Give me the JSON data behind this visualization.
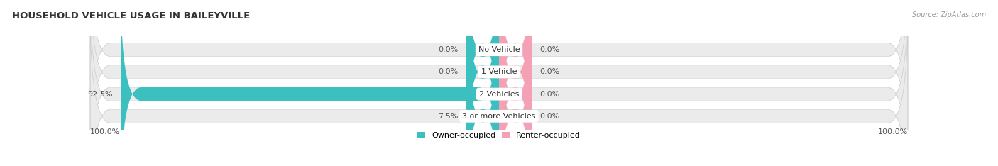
{
  "title": "HOUSEHOLD VEHICLE USAGE IN BAILEYVILLE",
  "source": "Source: ZipAtlas.com",
  "categories": [
    "No Vehicle",
    "1 Vehicle",
    "2 Vehicles",
    "3 or more Vehicles"
  ],
  "owner_values": [
    0.0,
    0.0,
    92.5,
    7.5
  ],
  "renter_values": [
    0.0,
    0.0,
    0.0,
    0.0
  ],
  "owner_color": "#3bbfbf",
  "renter_color": "#f4a0b5",
  "bar_bg_color": "#ebebeb",
  "bar_border_color": "#d0d0d0",
  "owner_label": "Owner-occupied",
  "renter_label": "Renter-occupied",
  "axis_min": -100,
  "axis_max": 100,
  "min_stub": 8,
  "figsize": [
    14.06,
    2.34
  ],
  "dpi": 100,
  "title_fontsize": 9.5,
  "label_fontsize": 8,
  "source_fontsize": 7,
  "bar_height": 0.62,
  "n_bars": 4
}
